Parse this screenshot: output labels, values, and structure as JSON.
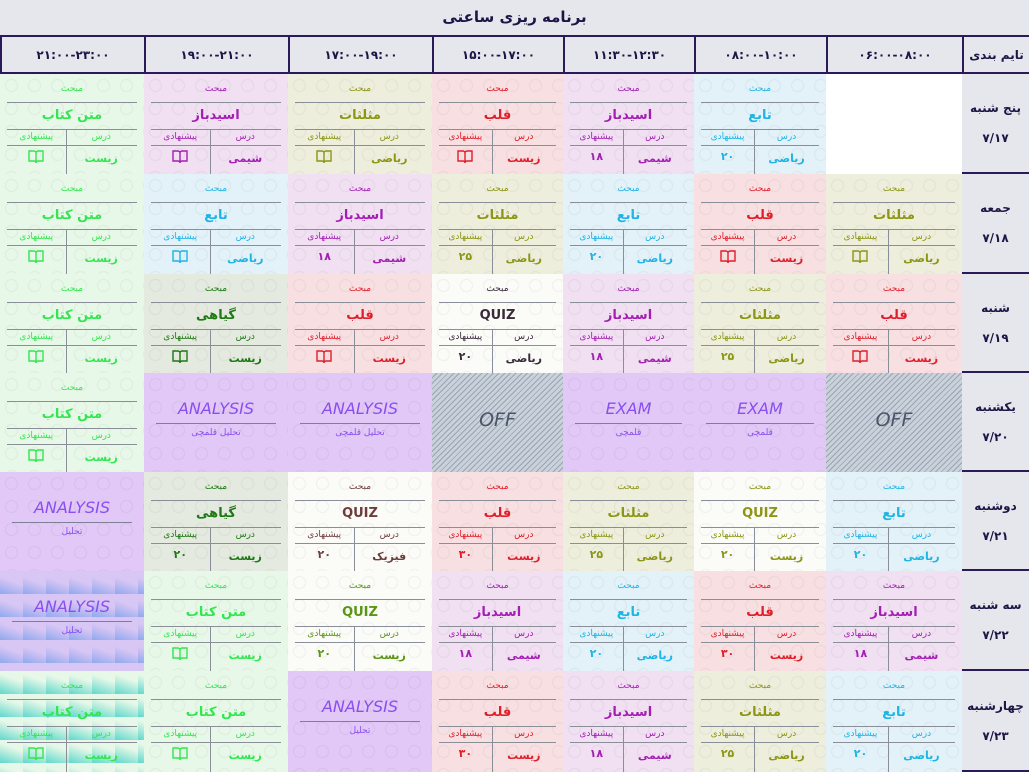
{
  "title": "برنامه ریزی ساعتی",
  "header": {
    "first": "تایم بندی",
    "times": [
      "۰۶:۰۰-۰۸:۰۰",
      "۰۸:۰۰-۱۰:۰۰",
      "۱۱:۳۰-۱۲:۳۰",
      "۱۵:۰۰-۱۷:۰۰",
      "۱۷:۰۰-۱۹:۰۰",
      "۱۹:۰۰-۲۱:۰۰",
      "۲۱:۰۰-۲۳:۰۰"
    ]
  },
  "labels": {
    "topic": "مبحث",
    "lesson": "درس",
    "suggest": "پیشنهادی"
  },
  "themes": {
    "red": {
      "fg": "#e01e2a",
      "bg": "#f8e0e2"
    },
    "purple": {
      "fg": "#a41eb4",
      "bg": "#f0e0f2"
    },
    "blue": {
      "fg": "#1eb4e6",
      "bg": "#e2f2f8"
    },
    "olive": {
      "fg": "#8c9614",
      "bg": "#eeeedd"
    },
    "green": {
      "fg": "#32e650",
      "bg": "#e8f8e8"
    },
    "dkgreen": {
      "fg": "#1e7814",
      "bg": "#e4eadf"
    },
    "quizdark": {
      "fg": "#3a2a3a",
      "bg": "#fbfbf8"
    },
    "quizbrown": {
      "fg": "#6e3c3c",
      "bg": "#fbfbf8"
    },
    "quizolive": {
      "fg": "#8c9614",
      "bg": "#fbfbf8"
    },
    "quizgreen": {
      "fg": "#5a9614",
      "bg": "#fbfbf8"
    }
  },
  "rows": [
    {
      "day": "پنج شنبه",
      "date": "۷/۱۷",
      "cells": [
        {
          "type": "empty"
        },
        {
          "type": "lesson",
          "theme": "blue",
          "topic": "تابع",
          "subject": "ریاضی",
          "suggest": "۲۰"
        },
        {
          "type": "lesson",
          "theme": "purple",
          "topic": "اسیدباز",
          "subject": "شیمی",
          "suggest": "۱۸"
        },
        {
          "type": "lesson",
          "theme": "red",
          "topic": "قلب",
          "subject": "زیست",
          "icon": "book-icon"
        },
        {
          "type": "lesson",
          "theme": "olive",
          "topic": "مثلثات",
          "subject": "ریاضی",
          "icon": "book-icon"
        },
        {
          "type": "lesson",
          "theme": "purple",
          "topic": "اسیدباز",
          "subject": "شیمی",
          "icon": "book-icon"
        },
        {
          "type": "lesson",
          "theme": "green",
          "topic": "متن کتاب",
          "subject": "زیست",
          "icon": "book-icon"
        }
      ]
    },
    {
      "day": "جمعه",
      "date": "۷/۱۸",
      "cells": [
        {
          "type": "lesson",
          "theme": "olive",
          "topic": "مثلثات",
          "subject": "ریاضی",
          "icon": "book-icon"
        },
        {
          "type": "lesson",
          "theme": "red",
          "topic": "قلب",
          "subject": "زیست",
          "icon": "book-icon"
        },
        {
          "type": "lesson",
          "theme": "blue",
          "topic": "تابع",
          "subject": "ریاضی",
          "suggest": "۲۰"
        },
        {
          "type": "lesson",
          "theme": "olive",
          "topic": "مثلثات",
          "subject": "ریاضی",
          "suggest": "۲۵"
        },
        {
          "type": "lesson",
          "theme": "purple",
          "topic": "اسیدباز",
          "subject": "شیمی",
          "suggest": "۱۸"
        },
        {
          "type": "lesson",
          "theme": "blue",
          "topic": "تابع",
          "subject": "ریاضی",
          "icon": "book-icon"
        },
        {
          "type": "lesson",
          "theme": "green",
          "topic": "متن کتاب",
          "subject": "زیست",
          "icon": "book-icon"
        }
      ]
    },
    {
      "day": "شنبه",
      "date": "۷/۱۹",
      "cells": [
        {
          "type": "lesson",
          "theme": "red",
          "topic": "قلب",
          "subject": "زیست",
          "icon": "book-icon"
        },
        {
          "type": "lesson",
          "theme": "olive",
          "topic": "مثلثات",
          "subject": "ریاضی",
          "suggest": "۲۵"
        },
        {
          "type": "lesson",
          "theme": "purple",
          "topic": "اسیدباز",
          "subject": "شیمی",
          "suggest": "۱۸"
        },
        {
          "type": "lesson",
          "theme": "quizdark",
          "topic": "QUIZ",
          "subject": "ریاضی",
          "suggest": "۲۰"
        },
        {
          "type": "lesson",
          "theme": "red",
          "topic": "قلب",
          "subject": "زیست",
          "icon": "book-icon"
        },
        {
          "type": "lesson",
          "theme": "dkgreen",
          "topic": "گیاهی",
          "subject": "زیست",
          "icon": "book-icon"
        },
        {
          "type": "lesson",
          "theme": "green",
          "topic": "متن کتاب",
          "subject": "زیست",
          "icon": "book-icon"
        }
      ]
    },
    {
      "day": "یکشنبه",
      "date": "۷/۲۰",
      "cells": [
        {
          "type": "off",
          "title": "OFF"
        },
        {
          "type": "exam",
          "title": "EXAM",
          "sub": "قلمچی"
        },
        {
          "type": "exam",
          "title": "EXAM",
          "sub": "قلمچی"
        },
        {
          "type": "off",
          "title": "OFF"
        },
        {
          "type": "exam",
          "title": "ANALYSIS",
          "sub": "تحلیل قلمچی"
        },
        {
          "type": "exam",
          "title": "ANALYSIS",
          "sub": "تحلیل قلمچی"
        },
        {
          "type": "lesson",
          "theme": "green",
          "topic": "متن کتاب",
          "subject": "زیست",
          "icon": "book-icon"
        }
      ]
    },
    {
      "day": "دوشنبه",
      "date": "۷/۲۱",
      "cells": [
        {
          "type": "lesson",
          "theme": "blue",
          "topic": "تابع",
          "subject": "ریاضی",
          "suggest": "۲۰"
        },
        {
          "type": "lesson",
          "theme": "quizolive",
          "topic": "QUIZ",
          "subject": "زیست",
          "suggest": "۲۰"
        },
        {
          "type": "lesson",
          "theme": "olive",
          "topic": "مثلثات",
          "subject": "ریاضی",
          "suggest": "۲۵"
        },
        {
          "type": "lesson",
          "theme": "red",
          "topic": "قلب",
          "subject": "زیست",
          "suggest": "۳۰"
        },
        {
          "type": "lesson",
          "theme": "quizbrown",
          "topic": "QUIZ",
          "subject": "فیزیک",
          "suggest": "۲۰"
        },
        {
          "type": "lesson",
          "theme": "dkgreen",
          "topic": "گیاهی",
          "subject": "زیست",
          "suggest": "۲۰"
        },
        {
          "type": "exam",
          "title": "ANALYSIS",
          "sub": "تحلیل"
        }
      ]
    },
    {
      "day": "سه شنبه",
      "date": "۷/۲۲",
      "cells": [
        {
          "type": "lesson",
          "theme": "purple",
          "topic": "اسیدباز",
          "subject": "شیمی",
          "suggest": "۱۸"
        },
        {
          "type": "lesson",
          "theme": "red",
          "topic": "قلب",
          "subject": "زیست",
          "suggest": "۳۰"
        },
        {
          "type": "lesson",
          "theme": "blue",
          "topic": "تابع",
          "subject": "ریاضی",
          "suggest": "۲۰"
        },
        {
          "type": "lesson",
          "theme": "purple",
          "topic": "اسیدباز",
          "subject": "شیمی",
          "suggest": "۱۸"
        },
        {
          "type": "lesson",
          "theme": "quizgreen",
          "topic": "QUIZ",
          "subject": "زیست",
          "suggest": "۲۰"
        },
        {
          "type": "lesson",
          "theme": "green",
          "topic": "متن کتاب",
          "subject": "زیست",
          "icon": "book-icon"
        },
        {
          "type": "exam",
          "title": "ANALYSIS",
          "sub": "تحلیل",
          "grad": "blue"
        }
      ]
    },
    {
      "day": "چهارشنبه",
      "date": "۷/۲۳",
      "cells": [
        {
          "type": "lesson",
          "theme": "blue",
          "topic": "تابع",
          "subject": "ریاضی",
          "suggest": "۲۰"
        },
        {
          "type": "lesson",
          "theme": "olive",
          "topic": "مثلثات",
          "subject": "ریاضی",
          "suggest": "۲۵"
        },
        {
          "type": "lesson",
          "theme": "purple",
          "topic": "اسیدباز",
          "subject": "شیمی",
          "suggest": "۱۸"
        },
        {
          "type": "lesson",
          "theme": "red",
          "topic": "قلب",
          "subject": "زیست",
          "suggest": "۳۰"
        },
        {
          "type": "exam",
          "title": "ANALYSIS",
          "sub": "تحلیل"
        },
        {
          "type": "lesson",
          "theme": "green",
          "topic": "متن کتاب",
          "subject": "زیست",
          "icon": "book-icon"
        },
        {
          "type": "lesson",
          "theme": "green",
          "topic": "متن کتاب",
          "subject": "زیست",
          "icon": "book-icon",
          "grad": "teal"
        }
      ]
    }
  ]
}
